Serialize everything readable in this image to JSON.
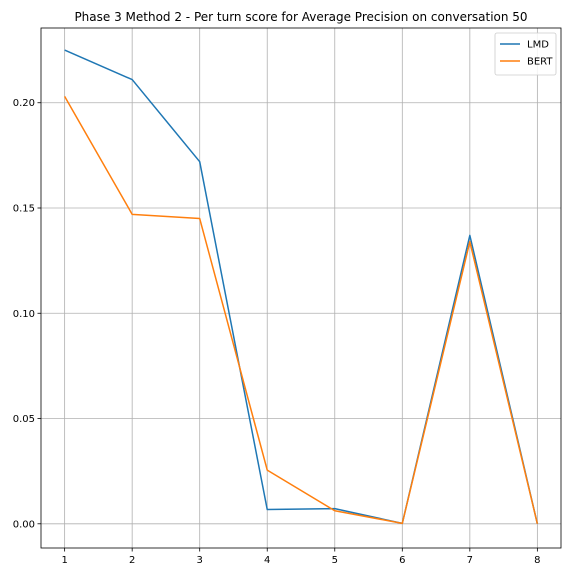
{
  "chart_data": {
    "type": "line",
    "title": "Phase 3 Method 2 - Per turn score for Average Precision on conversation 50",
    "xlabel": "",
    "ylabel": "",
    "x": [
      1,
      2,
      3,
      4,
      5,
      6,
      7,
      8
    ],
    "xticks": [
      "1",
      "2",
      "3",
      "4",
      "5",
      "6",
      "7",
      "8"
    ],
    "yticks": [
      "0.00",
      "0.05",
      "0.10",
      "0.15",
      "0.20"
    ],
    "xlim": [
      0.65,
      8.35
    ],
    "ylim": [
      -0.0115,
      0.2355
    ],
    "grid": true,
    "legend_position": "top-right",
    "series": [
      {
        "name": "LMD",
        "color": "#1f77b4",
        "values": [
          0.225,
          0.211,
          0.172,
          0.0068,
          0.0072,
          0.0002,
          0.137,
          0.0
        ]
      },
      {
        "name": "BERT",
        "color": "#ff7f0e",
        "values": [
          0.203,
          0.147,
          0.145,
          0.0255,
          0.0062,
          0.0002,
          0.134,
          0.0
        ]
      }
    ]
  }
}
